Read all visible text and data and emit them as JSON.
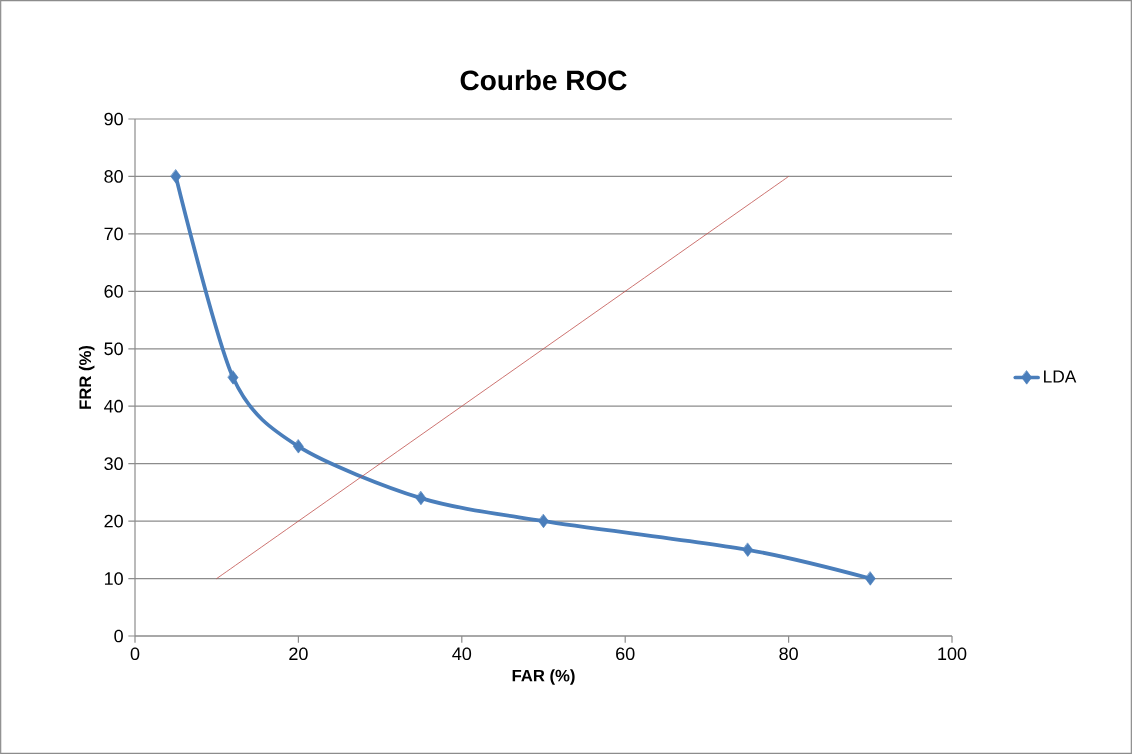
{
  "chart_data": {
    "type": "line",
    "title": "Courbe ROC",
    "xlabel": "FAR (%)",
    "ylabel": "FRR (%)",
    "xlim": [
      0,
      100
    ],
    "xticks": [
      0,
      20,
      40,
      60,
      80,
      100
    ],
    "ylim": [
      0,
      90
    ],
    "yticks": [
      0,
      10,
      20,
      30,
      40,
      50,
      60,
      70,
      80,
      90
    ],
    "grid": "y",
    "legend": "right",
    "marker": "diamond",
    "line_style": "solid",
    "x": [
      5,
      12,
      20,
      35,
      50,
      75,
      90
    ],
    "series": [
      {
        "name": "LDA",
        "color": "#4a7ebb",
        "values": [
          80,
          45,
          33,
          24,
          20,
          15,
          10
        ]
      },
      {
        "type": "line",
        "color": "#c0504d",
        "x": [
          10,
          80
        ],
        "values": [
          10,
          80
        ],
        "marker": "none"
      }
    ]
  }
}
